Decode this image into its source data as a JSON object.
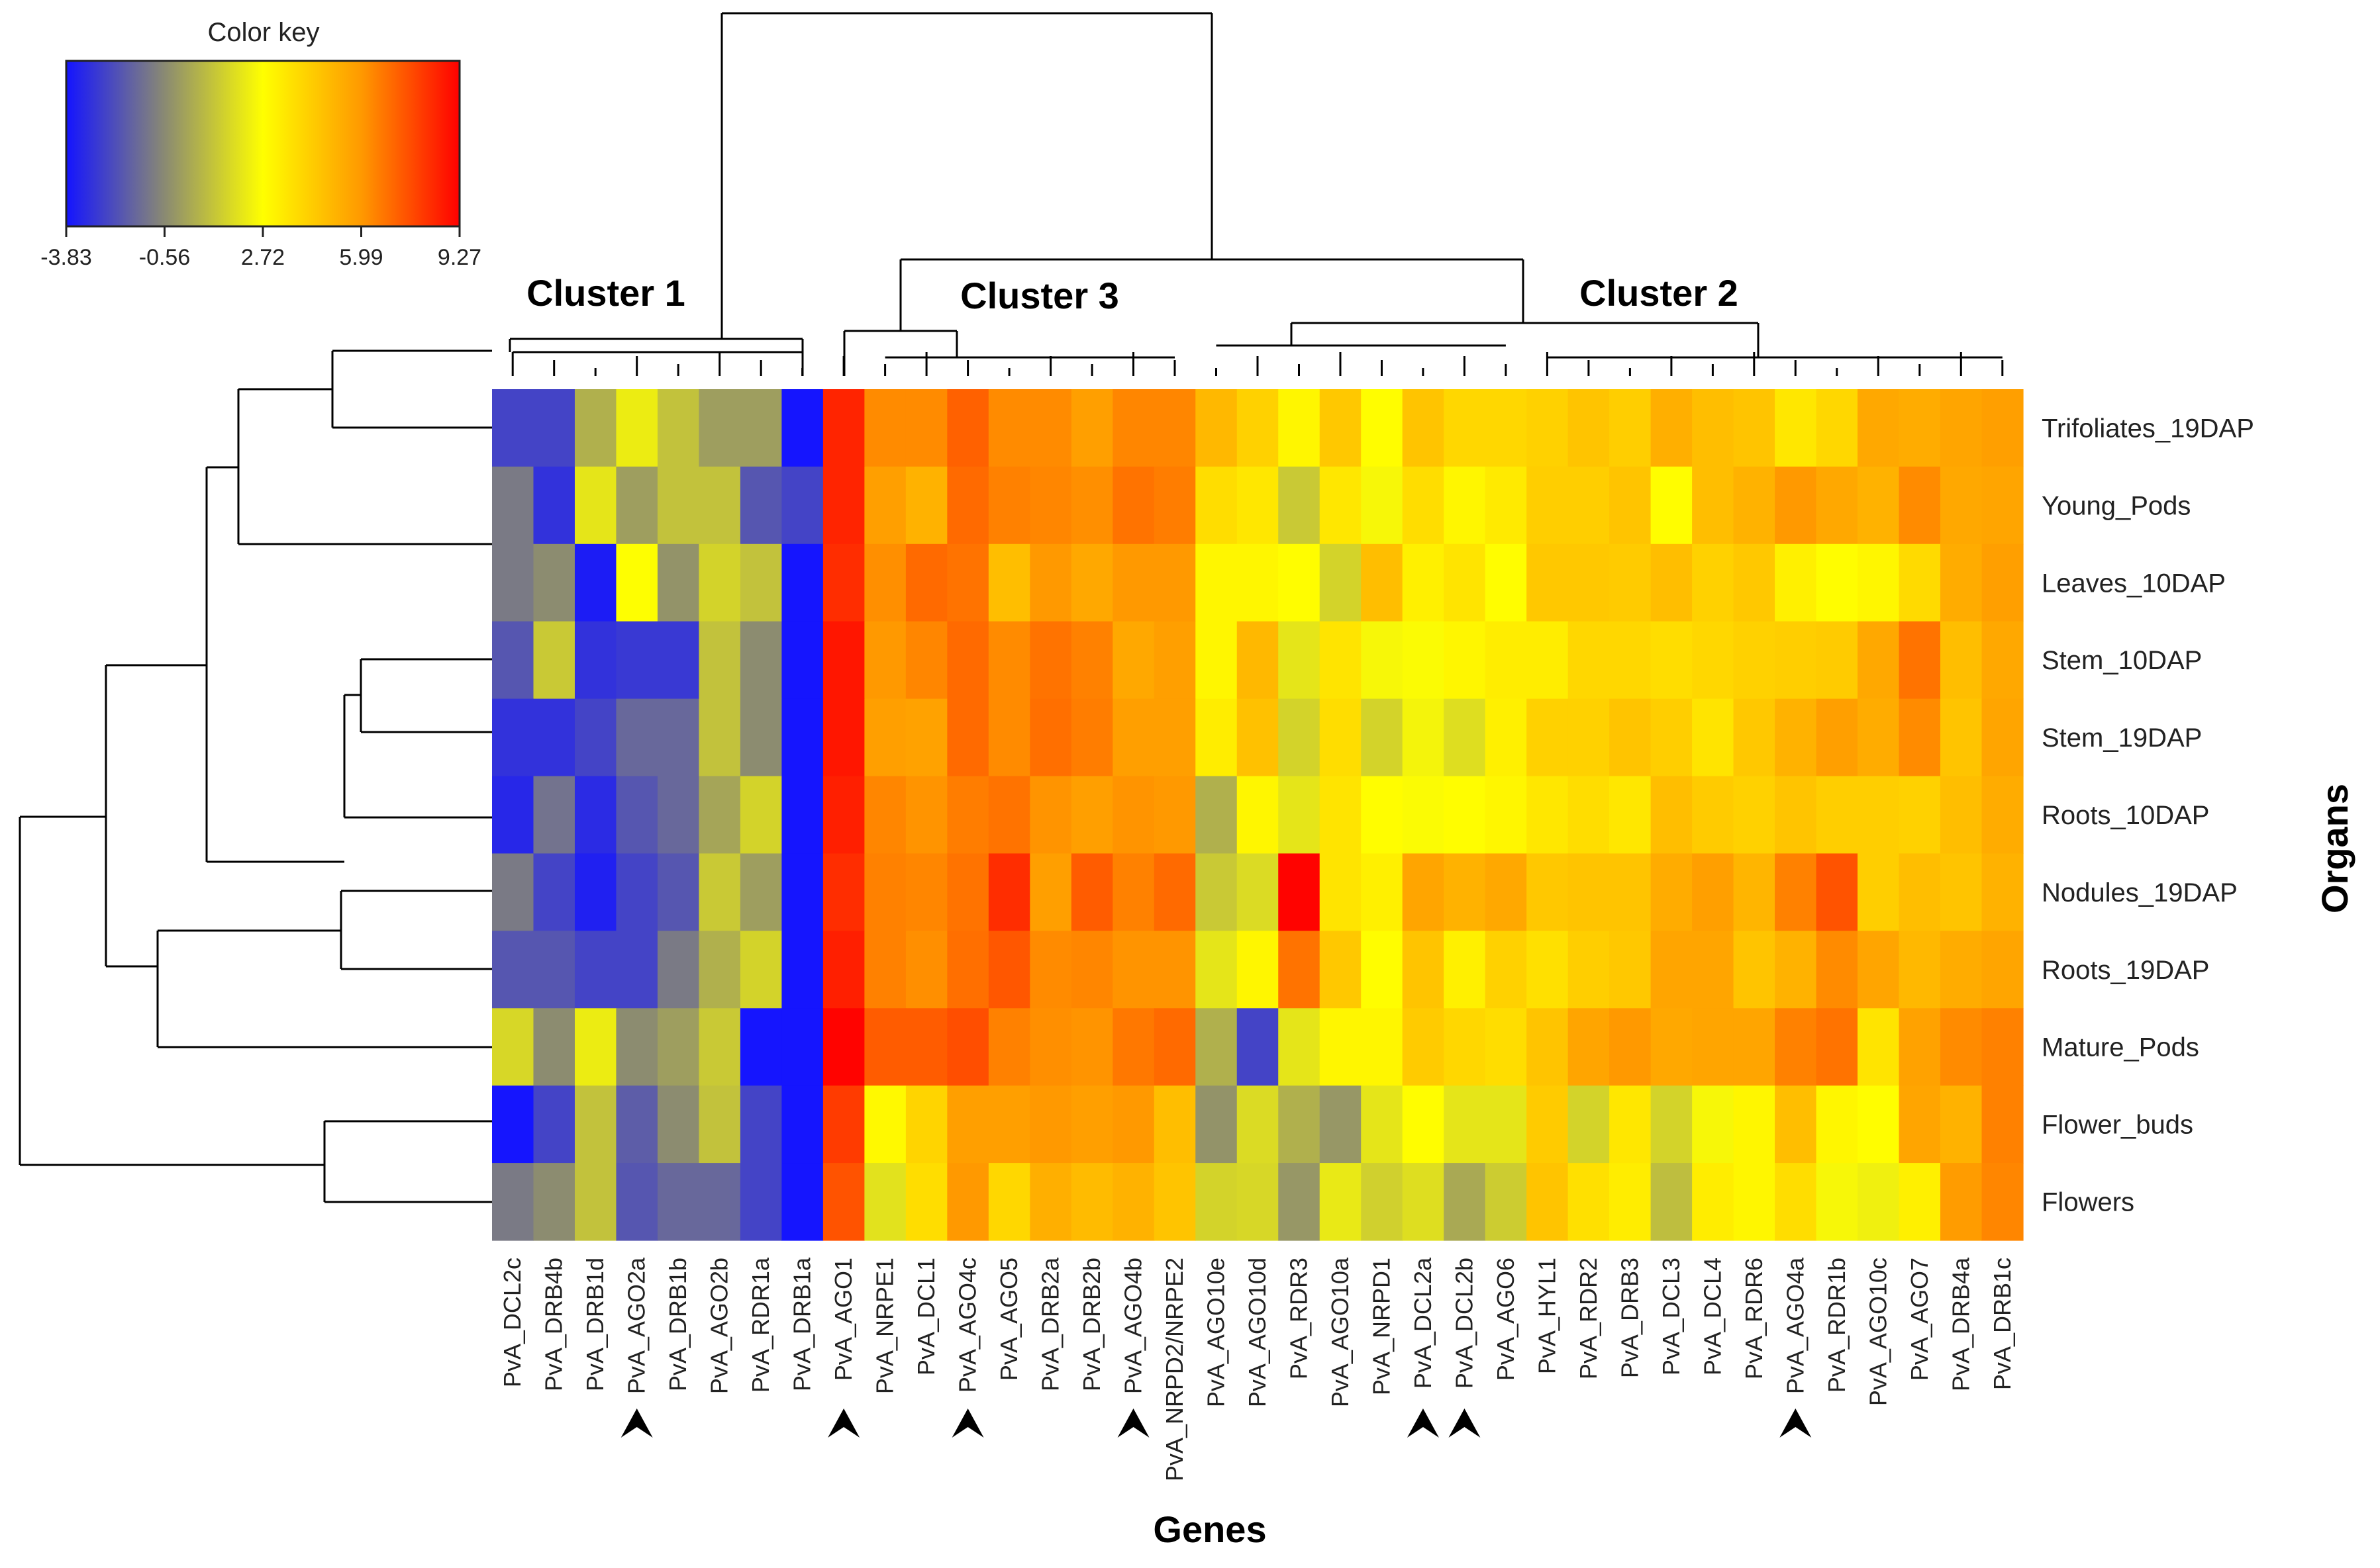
{
  "chart_data": {
    "type": "heatmap",
    "title": "",
    "xlabel": "Genes",
    "ylabel": "Organs",
    "color_key": {
      "title": "Color key",
      "ticks": [
        "-3.83",
        "-0.56",
        "2.72",
        "5.99",
        "9.27"
      ],
      "range": [
        -3.83,
        9.27
      ],
      "colors": [
        "#1414ff",
        "#8a8a72",
        "#ffff00",
        "#ff9900",
        "#ff0000"
      ]
    },
    "clusters": [
      {
        "label": "Cluster 1"
      },
      {
        "label": "Cluster 3"
      },
      {
        "label": "Cluster 2"
      }
    ],
    "rows": [
      "Trifoliates_19DAP",
      "Young_Pods",
      "Leaves_10DAP",
      "Stem_10DAP",
      "Stem_19DAP",
      "Roots_10DAP",
      "Nodules_19DAP",
      "Roots_19DAP",
      "Mature_Pods",
      "Flower_buds",
      "Flowers"
    ],
    "columns": [
      "PvA_DCL2c",
      "PvA_DRB4b",
      "PvA_DRB1d",
      "PvA_AGO2a",
      "PvA_DRB1b",
      "PvA_AGO2b",
      "PvA_RDR1a",
      "PvA_DRB1a",
      "PvA_AGO1",
      "PvA_NRPE1",
      "PvA_DCL1",
      "PvA_AGO4c",
      "PvA_AGO5",
      "PvA_DRB2a",
      "PvA_DRB2b",
      "PvA_AGO4b",
      "PvA_NRPD2/NRPE2",
      "PvA_AGO10e",
      "PvA_AGO10d",
      "PvA_RDR3",
      "PvA_AGO10a",
      "PvA_NRPD1",
      "PvA_DCL2a",
      "PvA_DCL2b",
      "PvA_AGO6",
      "PvA_HYL1",
      "PvA_RDR2",
      "PvA_DRB3",
      "PvA_DCL3",
      "PvA_DCL4",
      "PvA_RDR6",
      "PvA_AGO4a",
      "PvA_RDR1b",
      "PvA_AGO10c",
      "PvA_AGO7",
      "PvA_DRB4a",
      "PvA_DRB1c"
    ],
    "values": [
      [
        -2.5,
        -2.5,
        0.5,
        2.2,
        1.0,
        0.0,
        0.0,
        -3.8,
        8.5,
        6.3,
        6.3,
        7.2,
        6.3,
        6.3,
        5.8,
        6.4,
        6.4,
        5.0,
        4.2,
        3.0,
        4.5,
        2.8,
        4.6,
        4.0,
        4.0,
        4.2,
        4.6,
        4.3,
        5.3,
        4.8,
        4.6,
        3.5,
        4.0,
        5.5,
        5.4,
        5.6,
        5.8
      ],
      [
        -1.0,
        -3.0,
        2.0,
        0.0,
        1.0,
        1.0,
        -2.0,
        -2.5,
        8.5,
        5.8,
        5.2,
        7.0,
        6.5,
        6.4,
        6.2,
        6.8,
        6.6,
        3.8,
        3.5,
        1.2,
        3.5,
        2.5,
        3.8,
        3.0,
        3.4,
        4.3,
        4.3,
        4.6,
        2.8,
        4.8,
        5.2,
        6.0,
        5.5,
        5.2,
        6.3,
        5.5,
        5.6
      ],
      [
        -1.0,
        -0.5,
        -3.6,
        2.7,
        -0.3,
        1.5,
        1.0,
        -3.8,
        8.3,
        6.2,
        7.0,
        6.8,
        4.8,
        6.0,
        5.5,
        6.0,
        6.0,
        3.0,
        3.0,
        2.8,
        1.5,
        4.8,
        3.2,
        3.6,
        2.8,
        4.5,
        4.5,
        4.4,
        4.8,
        4.2,
        4.5,
        3.2,
        2.8,
        3.0,
        3.9,
        5.4,
        5.8
      ],
      [
        -2.0,
        1.2,
        -3.0,
        -2.8,
        -2.8,
        1.0,
        -0.5,
        -3.8,
        8.8,
        6.0,
        6.4,
        7.0,
        6.3,
        6.8,
        6.5,
        5.5,
        5.8,
        3.0,
        5.0,
        2.0,
        3.6,
        2.5,
        2.6,
        3.0,
        3.3,
        3.3,
        4.0,
        4.0,
        3.8,
        4.0,
        4.2,
        4.3,
        4.4,
        5.5,
        6.8,
        4.8,
        5.5
      ],
      [
        -3.0,
        -3.0,
        -2.5,
        -1.5,
        -1.5,
        1.0,
        -0.5,
        -3.8,
        8.8,
        5.8,
        5.7,
        7.0,
        6.3,
        6.9,
        6.6,
        5.8,
        5.8,
        3.3,
        4.7,
        1.5,
        3.8,
        1.5,
        2.4,
        1.8,
        3.2,
        4.2,
        4.2,
        4.6,
        4.3,
        3.6,
        4.5,
        5.2,
        5.8,
        5.4,
        6.3,
        4.6,
        5.6
      ],
      [
        -3.3,
        -1.2,
        -3.2,
        -2.0,
        -1.5,
        0.2,
        1.5,
        -3.8,
        8.6,
        6.4,
        6.1,
        6.6,
        6.8,
        6.1,
        5.8,
        6.1,
        6.0,
        0.5,
        3.0,
        2.0,
        3.6,
        2.8,
        2.6,
        2.8,
        3.0,
        3.5,
        3.8,
        3.5,
        4.8,
        4.4,
        4.2,
        4.6,
        4.3,
        4.3,
        4.2,
        4.8,
        5.4
      ],
      [
        -1.0,
        -2.5,
        -3.5,
        -2.5,
        -2.0,
        1.2,
        0.0,
        -3.8,
        8.3,
        6.5,
        6.4,
        6.8,
        8.3,
        5.8,
        7.3,
        6.5,
        7.0,
        1.2,
        1.7,
        9.2,
        3.6,
        3.2,
        5.6,
        5.2,
        5.5,
        4.5,
        4.6,
        4.6,
        5.4,
        5.8,
        5.1,
        6.5,
        7.5,
        4.3,
        4.8,
        4.6,
        5.2
      ],
      [
        -2.0,
        -2.0,
        -2.5,
        -2.5,
        -1.0,
        0.5,
        1.5,
        -3.8,
        8.6,
        6.5,
        6.2,
        6.9,
        7.4,
        6.3,
        6.4,
        6.1,
        6.1,
        2.0,
        3.0,
        6.8,
        4.5,
        2.8,
        4.6,
        3.2,
        4.2,
        3.7,
        4.3,
        4.5,
        5.6,
        5.6,
        4.6,
        5.2,
        6.3,
        5.6,
        5.0,
        5.4,
        5.6
      ],
      [
        1.6,
        -0.5,
        2.2,
        -0.5,
        0.0,
        1.2,
        -3.8,
        -3.8,
        9.2,
        7.3,
        7.3,
        7.6,
        6.5,
        6.2,
        6.1,
        6.7,
        7.0,
        0.5,
        -2.5,
        2.0,
        3.0,
        3.0,
        4.4,
        4.0,
        3.8,
        4.6,
        5.6,
        6.0,
        5.5,
        5.6,
        5.6,
        6.5,
        6.8,
        3.6,
        5.7,
        6.3,
        6.5
      ],
      [
        -3.8,
        -2.5,
        1.0,
        -1.8,
        -0.5,
        1.0,
        -2.5,
        -3.8,
        8.0,
        2.9,
        4.1,
        5.8,
        5.8,
        6.0,
        5.8,
        6.0,
        4.8,
        -0.3,
        1.7,
        0.5,
        -0.2,
        2.0,
        2.8,
        2.0,
        2.0,
        4.4,
        1.5,
        3.5,
        1.5,
        2.5,
        3.0,
        4.8,
        3.0,
        2.8,
        5.6,
        5.2,
        6.5
      ],
      [
        -1.0,
        -0.5,
        1.0,
        -2.0,
        -1.5,
        -1.5,
        -2.5,
        -3.8,
        7.5,
        1.9,
        3.8,
        6.0,
        4.0,
        5.3,
        4.9,
        5.2,
        4.6,
        1.5,
        1.6,
        -0.2,
        2.1,
        1.4,
        1.8,
        0.3,
        1.3,
        4.6,
        3.7,
        3.3,
        0.9,
        3.3,
        3.0,
        3.8,
        2.5,
        2.3,
        3.2,
        5.9,
        6.4
      ]
    ],
    "arrow_markers": [
      "PvA_AGO2a",
      "PvA_AGO1",
      "PvA_AGO4c",
      "PvA_AGO4b",
      "PvA_DCL2a",
      "PvA_DCL2b",
      "PvA_AGO4a"
    ]
  }
}
